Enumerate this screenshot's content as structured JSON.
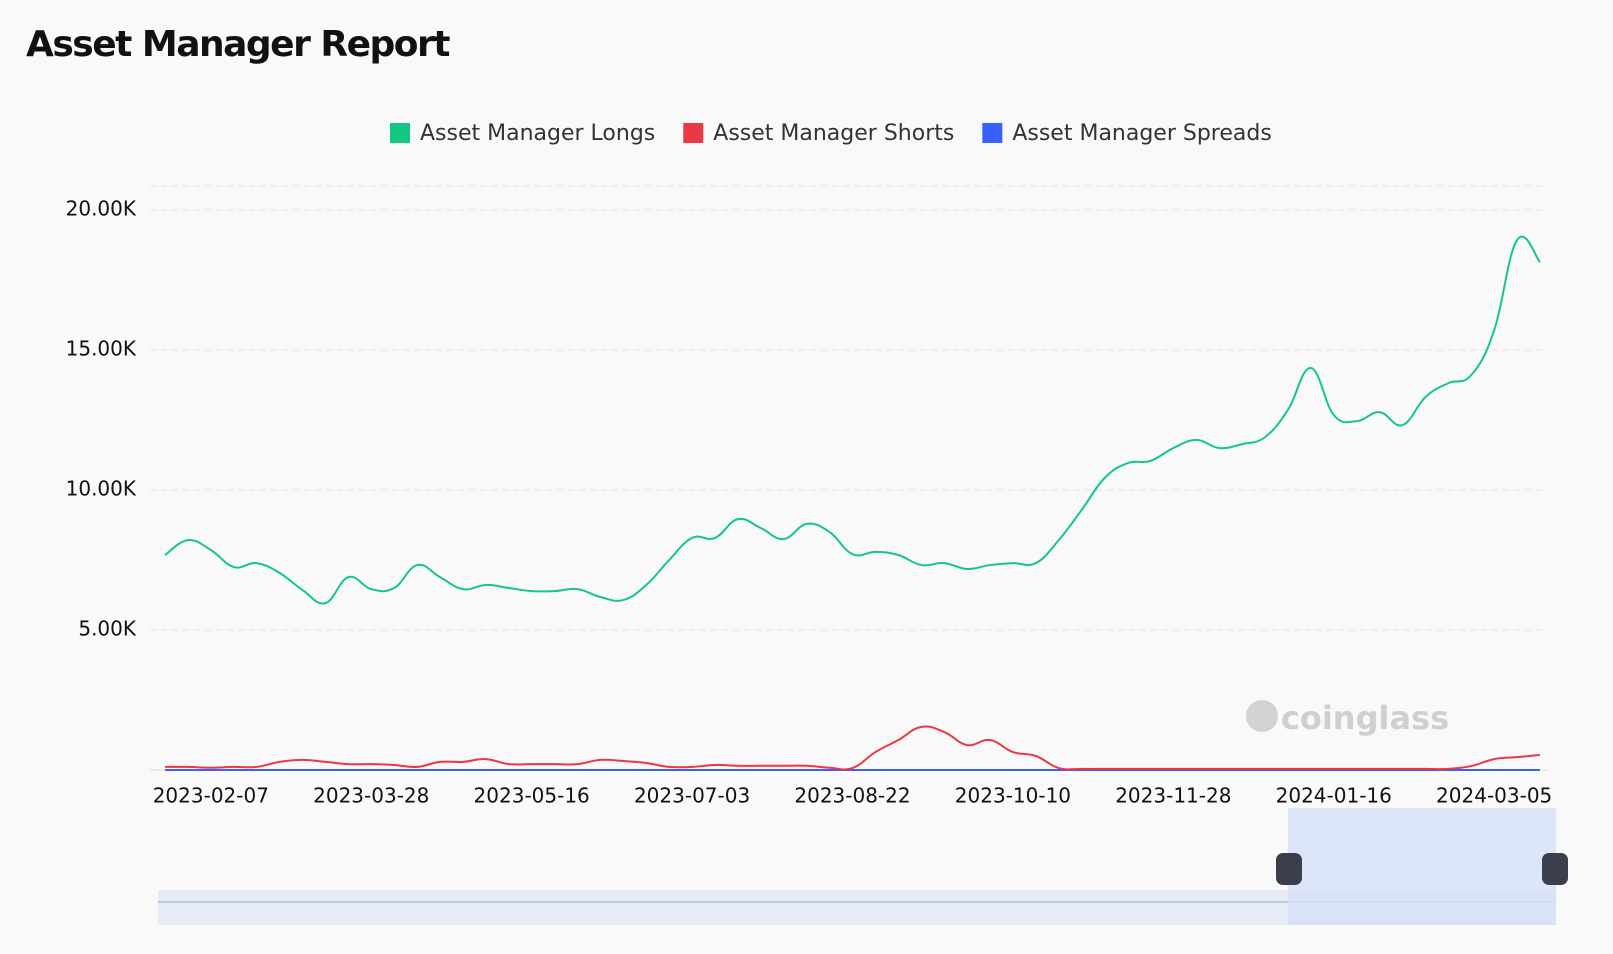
{
  "chart_data": {
    "type": "line",
    "title": "Asset Manager Report",
    "watermark": "coinglass",
    "categories": [
      null,
      null,
      "2023-02-07",
      null,
      null,
      null,
      null,
      null,
      null,
      "2023-03-28",
      null,
      null,
      null,
      null,
      null,
      null,
      "2023-05-16",
      null,
      null,
      null,
      null,
      null,
      null,
      "2023-07-03",
      null,
      null,
      null,
      null,
      null,
      null,
      "2023-08-22",
      null,
      null,
      null,
      null,
      null,
      null,
      "2023-10-10",
      null,
      null,
      null,
      null,
      null,
      null,
      "2023-11-28",
      null,
      null,
      null,
      null,
      null,
      null,
      "2024-01-16",
      null,
      null,
      null,
      null,
      null,
      null,
      "2024-03-05",
      null,
      null
    ],
    "series": [
      {
        "name": "Asset Manager Longs",
        "color": "#16c784",
        "values": [
          7680,
          8210,
          7860,
          7250,
          7390,
          7040,
          6430,
          5960,
          6890,
          6460,
          6500,
          7320,
          6890,
          6460,
          6610,
          6500,
          6390,
          6390,
          6460,
          6180,
          6070,
          6610,
          7500,
          8290,
          8290,
          8960,
          8640,
          8250,
          8790,
          8500,
          7710,
          7790,
          7680,
          7320,
          7390,
          7180,
          7320,
          7390,
          7390,
          8210,
          9290,
          10430,
          10960,
          11040,
          11500,
          11790,
          11500,
          11640,
          11890,
          12860,
          14360,
          12680,
          12460,
          12780,
          12320,
          13320,
          13820,
          14110,
          15710,
          18930,
          18140
        ]
      },
      {
        "name": "Asset Manager Shorts",
        "color": "#ea3943",
        "values": [
          110,
          110,
          80,
          110,
          110,
          290,
          360,
          290,
          210,
          210,
          180,
          110,
          290,
          290,
          390,
          210,
          210,
          210,
          210,
          360,
          320,
          250,
          110,
          110,
          180,
          150,
          150,
          150,
          150,
          80,
          70,
          640,
          1070,
          1540,
          1360,
          890,
          1070,
          640,
          500,
          70,
          40,
          40,
          40,
          40,
          40,
          40,
          40,
          40,
          40,
          40,
          40,
          40,
          40,
          40,
          40,
          40,
          40,
          140,
          390,
          460,
          540
        ]
      },
      {
        "name": "Asset Manager Spreads",
        "color": "#3861fb",
        "values": [
          0,
          0,
          0,
          0,
          0,
          0,
          0,
          0,
          0,
          0,
          0,
          0,
          0,
          0,
          0,
          0,
          0,
          0,
          0,
          0,
          0,
          0,
          0,
          0,
          0,
          0,
          0,
          0,
          0,
          0,
          0,
          0,
          0,
          0,
          0,
          0,
          0,
          0,
          0,
          0,
          0,
          0,
          0,
          0,
          0,
          0,
          0,
          0,
          0,
          0,
          0,
          0,
          0,
          0,
          0,
          0,
          0,
          0,
          0,
          0,
          0
        ]
      }
    ],
    "ylim": [
      0,
      20860
    ],
    "yticks": [
      {
        "value": 5000,
        "label": "5.00K"
      },
      {
        "value": 10000,
        "label": "10.00K"
      },
      {
        "value": 15000,
        "label": "15.00K"
      },
      {
        "value": 20000,
        "label": "20.00K"
      }
    ],
    "grid": true,
    "legend": "top"
  }
}
